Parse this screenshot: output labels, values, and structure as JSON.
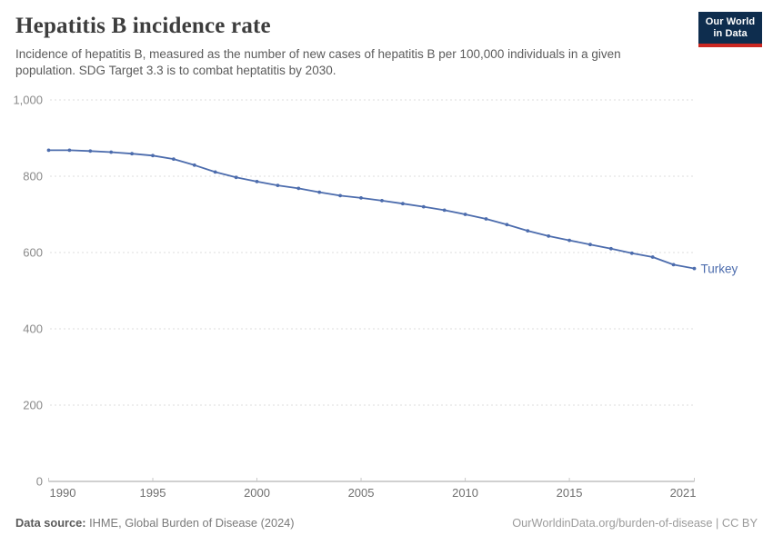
{
  "header": {
    "title": "Hepatitis B incidence rate",
    "subtitle": "Incidence of hepatitis B, measured as the number of new cases of hepatitis B per 100,000 individuals in a given population. SDG Target 3.3 is to combat heptatitis by 2030.",
    "logo": {
      "line1": "Our World",
      "line2": "in Data",
      "bg_color": "#0E2D4E",
      "accent_color": "#CB2721"
    }
  },
  "chart_data": {
    "type": "line",
    "title": "Hepatitis B incidence rate",
    "xlabel": "",
    "ylabel": "",
    "x": [
      1990,
      1991,
      1992,
      1993,
      1994,
      1995,
      1996,
      1997,
      1998,
      1999,
      2000,
      2001,
      2002,
      2003,
      2004,
      2005,
      2006,
      2007,
      2008,
      2009,
      2010,
      2011,
      2012,
      2013,
      2014,
      2015,
      2016,
      2017,
      2018,
      2019,
      2020,
      2021
    ],
    "series": [
      {
        "name": "Turkey",
        "color": "#4C6CAD",
        "values": [
          868,
          868,
          866,
          863,
          859,
          854,
          845,
          829,
          811,
          797,
          786,
          776,
          768,
          758,
          749,
          743,
          736,
          728,
          720,
          711,
          700,
          688,
          673,
          657,
          643,
          632,
          621,
          610,
          598,
          588,
          568,
          558
        ]
      }
    ],
    "xlim": [
      1990,
      2021
    ],
    "ylim": [
      0,
      1000
    ],
    "yticks": [
      0,
      200,
      400,
      600,
      800,
      1000
    ],
    "ytick_labels": [
      "0",
      "200",
      "400",
      "600",
      "800",
      "1,000"
    ],
    "xticks": [
      1990,
      1995,
      2000,
      2005,
      2010,
      2015,
      2021
    ],
    "grid": "horizontal-dashed",
    "legend_position": "end-of-line",
    "end_label": "Turkey",
    "grid_color": "#dcdcdc",
    "axis_color": "#a0a0a0",
    "tick_color": "#c8c8c8",
    "ytick_label_color": "#8a8a8a",
    "xtick_label_color": "#6f6f6f"
  },
  "footer": {
    "source_label": "Data source:",
    "source_text": " IHME, Global Burden of Disease (2024)",
    "right_text": "OurWorldinData.org/burden-of-disease | CC BY"
  }
}
